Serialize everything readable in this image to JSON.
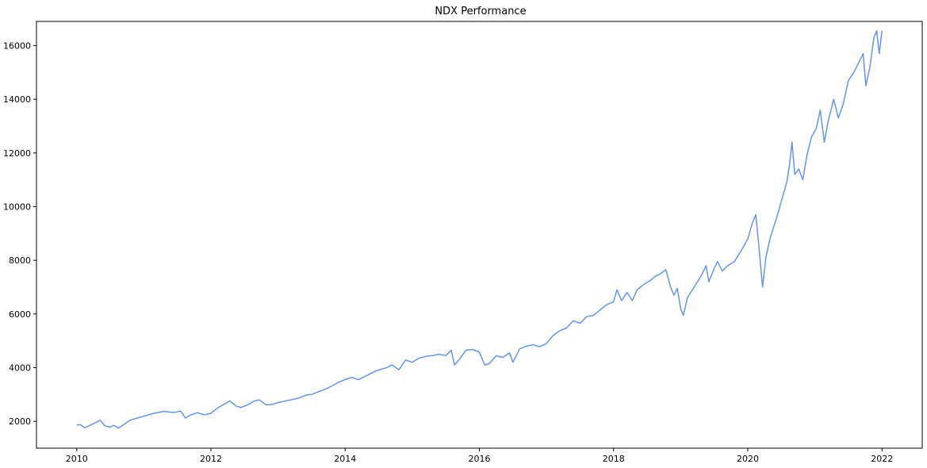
{
  "chart_data": {
    "type": "line",
    "title": "NDX Performance",
    "xlabel": "",
    "ylabel": "",
    "xlim": [
      2009.4,
      2022.6
    ],
    "ylim": [
      1000,
      16900
    ],
    "x_ticks": [
      2010,
      2012,
      2014,
      2016,
      2018,
      2020,
      2022
    ],
    "x_tick_labels": [
      "2010",
      "2012",
      "2014",
      "2016",
      "2018",
      "2020",
      "2022"
    ],
    "y_ticks": [
      2000,
      4000,
      6000,
      8000,
      10000,
      12000,
      14000,
      16000
    ],
    "y_tick_labels": [
      "2000",
      "4000",
      "6000",
      "8000",
      "10000",
      "12000",
      "14000",
      "16000"
    ],
    "grid": false,
    "legend": "none",
    "series_color": "#6495ED",
    "series": [
      {
        "points": [
          [
            2010.0,
            1860
          ],
          [
            2010.05,
            1880
          ],
          [
            2010.12,
            1760
          ],
          [
            2010.2,
            1850
          ],
          [
            2010.3,
            1980
          ],
          [
            2010.35,
            2040
          ],
          [
            2010.42,
            1830
          ],
          [
            2010.5,
            1780
          ],
          [
            2010.55,
            1850
          ],
          [
            2010.62,
            1750
          ],
          [
            2010.7,
            1880
          ],
          [
            2010.8,
            2050
          ],
          [
            2010.9,
            2120
          ],
          [
            2011.0,
            2190
          ],
          [
            2011.15,
            2300
          ],
          [
            2011.3,
            2370
          ],
          [
            2011.45,
            2330
          ],
          [
            2011.55,
            2380
          ],
          [
            2011.62,
            2120
          ],
          [
            2011.7,
            2240
          ],
          [
            2011.8,
            2320
          ],
          [
            2011.9,
            2240
          ],
          [
            2012.0,
            2300
          ],
          [
            2012.1,
            2500
          ],
          [
            2012.2,
            2640
          ],
          [
            2012.28,
            2760
          ],
          [
            2012.38,
            2560
          ],
          [
            2012.45,
            2520
          ],
          [
            2012.55,
            2620
          ],
          [
            2012.65,
            2760
          ],
          [
            2012.72,
            2800
          ],
          [
            2012.82,
            2620
          ],
          [
            2012.9,
            2620
          ],
          [
            2013.0,
            2700
          ],
          [
            2013.15,
            2780
          ],
          [
            2013.3,
            2860
          ],
          [
            2013.42,
            2980
          ],
          [
            2013.5,
            3000
          ],
          [
            2013.6,
            3100
          ],
          [
            2013.75,
            3250
          ],
          [
            2013.9,
            3450
          ],
          [
            2014.0,
            3560
          ],
          [
            2014.1,
            3640
          ],
          [
            2014.2,
            3550
          ],
          [
            2014.32,
            3700
          ],
          [
            2014.45,
            3870
          ],
          [
            2014.55,
            3950
          ],
          [
            2014.62,
            4000
          ],
          [
            2014.7,
            4100
          ],
          [
            2014.8,
            3920
          ],
          [
            2014.9,
            4280
          ],
          [
            2015.0,
            4200
          ],
          [
            2015.1,
            4350
          ],
          [
            2015.2,
            4420
          ],
          [
            2015.3,
            4450
          ],
          [
            2015.4,
            4500
          ],
          [
            2015.5,
            4450
          ],
          [
            2015.58,
            4650
          ],
          [
            2015.63,
            4100
          ],
          [
            2015.7,
            4300
          ],
          [
            2015.8,
            4650
          ],
          [
            2015.9,
            4680
          ],
          [
            2016.0,
            4580
          ],
          [
            2016.08,
            4100
          ],
          [
            2016.15,
            4150
          ],
          [
            2016.25,
            4450
          ],
          [
            2016.35,
            4380
          ],
          [
            2016.45,
            4550
          ],
          [
            2016.5,
            4200
          ],
          [
            2016.6,
            4700
          ],
          [
            2016.7,
            4800
          ],
          [
            2016.8,
            4850
          ],
          [
            2016.9,
            4780
          ],
          [
            2017.0,
            4900
          ],
          [
            2017.1,
            5200
          ],
          [
            2017.2,
            5380
          ],
          [
            2017.3,
            5480
          ],
          [
            2017.4,
            5750
          ],
          [
            2017.5,
            5650
          ],
          [
            2017.6,
            5900
          ],
          [
            2017.7,
            5950
          ],
          [
            2017.8,
            6150
          ],
          [
            2017.9,
            6350
          ],
          [
            2018.0,
            6450
          ],
          [
            2018.05,
            6900
          ],
          [
            2018.12,
            6500
          ],
          [
            2018.2,
            6800
          ],
          [
            2018.28,
            6500
          ],
          [
            2018.35,
            6900
          ],
          [
            2018.45,
            7100
          ],
          [
            2018.55,
            7250
          ],
          [
            2018.62,
            7400
          ],
          [
            2018.7,
            7500
          ],
          [
            2018.78,
            7650
          ],
          [
            2018.85,
            7000
          ],
          [
            2018.9,
            6700
          ],
          [
            2018.95,
            6950
          ],
          [
            2019.0,
            6200
          ],
          [
            2019.04,
            5950
          ],
          [
            2019.1,
            6600
          ],
          [
            2019.2,
            7000
          ],
          [
            2019.3,
            7400
          ],
          [
            2019.38,
            7800
          ],
          [
            2019.42,
            7200
          ],
          [
            2019.5,
            7700
          ],
          [
            2019.55,
            7950
          ],
          [
            2019.62,
            7600
          ],
          [
            2019.7,
            7800
          ],
          [
            2019.8,
            7950
          ],
          [
            2019.9,
            8350
          ],
          [
            2020.0,
            8800
          ],
          [
            2020.07,
            9400
          ],
          [
            2020.12,
            9700
          ],
          [
            2020.17,
            8400
          ],
          [
            2020.22,
            7000
          ],
          [
            2020.27,
            8100
          ],
          [
            2020.33,
            8800
          ],
          [
            2020.42,
            9500
          ],
          [
            2020.5,
            10200
          ],
          [
            2020.58,
            10900
          ],
          [
            2020.62,
            11500
          ],
          [
            2020.66,
            12400
          ],
          [
            2020.7,
            11200
          ],
          [
            2020.76,
            11400
          ],
          [
            2020.82,
            11000
          ],
          [
            2020.88,
            11900
          ],
          [
            2020.95,
            12600
          ],
          [
            2021.02,
            12900
          ],
          [
            2021.08,
            13600
          ],
          [
            2021.14,
            12400
          ],
          [
            2021.2,
            13200
          ],
          [
            2021.28,
            14000
          ],
          [
            2021.35,
            13300
          ],
          [
            2021.42,
            13800
          ],
          [
            2021.5,
            14700
          ],
          [
            2021.58,
            15000
          ],
          [
            2021.66,
            15400
          ],
          [
            2021.72,
            15700
          ],
          [
            2021.76,
            14500
          ],
          [
            2021.82,
            15200
          ],
          [
            2021.88,
            16300
          ],
          [
            2021.92,
            16550
          ],
          [
            2021.96,
            15700
          ],
          [
            2022.0,
            16550
          ]
        ]
      }
    ]
  }
}
